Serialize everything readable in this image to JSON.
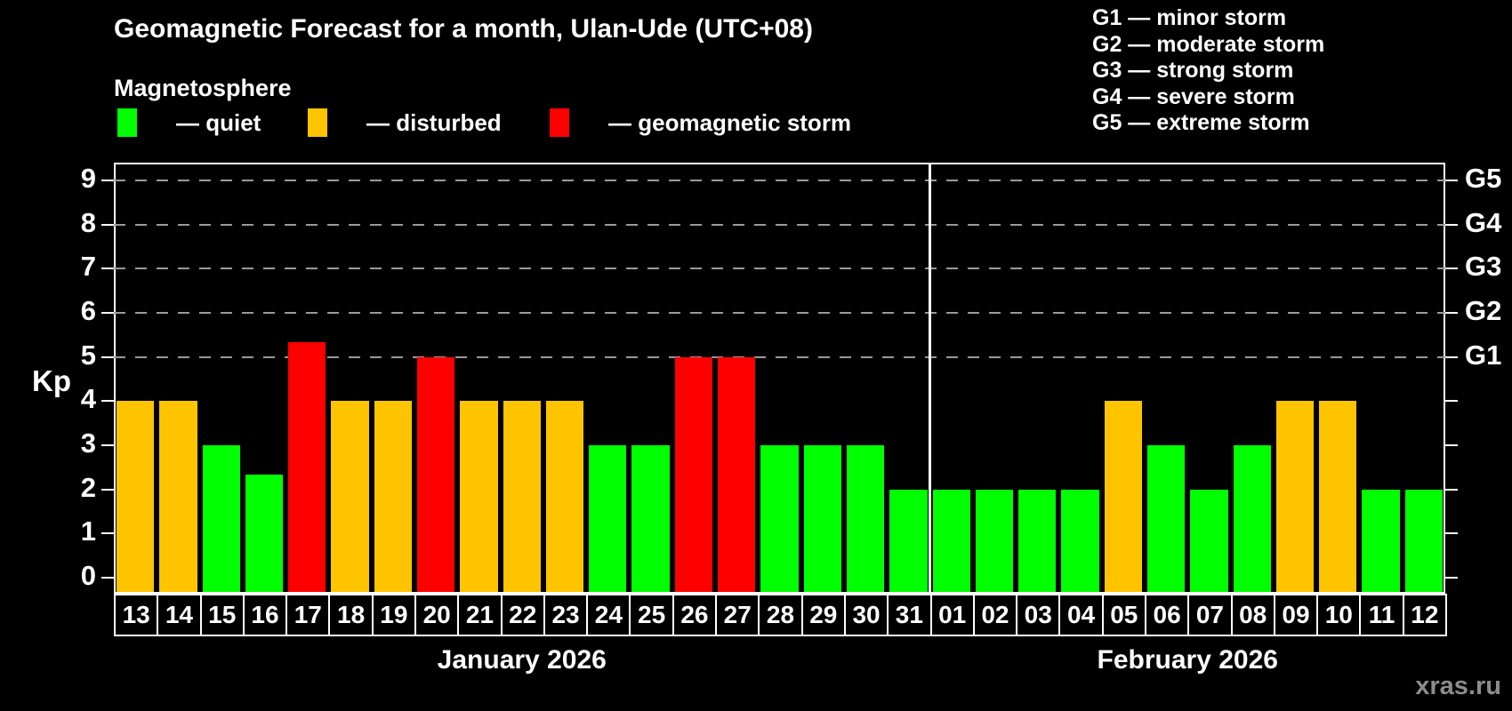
{
  "header": {
    "title": "Geomagnetic Forecast for a month, Ulan-Ude (UTC+08)",
    "subtitle": "Magnetosphere"
  },
  "legend": {
    "items": [
      {
        "label": "— quiet",
        "status": "quiet"
      },
      {
        "label": "— disturbed",
        "status": "disturbed"
      },
      {
        "label": "— geomagnetic storm",
        "status": "storm"
      }
    ]
  },
  "g_legend": {
    "items": [
      "G1 — minor storm",
      "G2 — moderate storm",
      "G3 — strong storm",
      "G4 — severe storm",
      "G5 — extreme storm"
    ]
  },
  "watermark": "xras.ru",
  "chart_data": {
    "type": "bar",
    "title": "Geomagnetic Forecast for a month, Ulan-Ude (UTC+08)",
    "series_name": "Magnetosphere",
    "xlabel": "",
    "ylabel": "Kp",
    "ylim": [
      -0.36,
      9.4
    ],
    "yticks": [
      0,
      1,
      2,
      3,
      4,
      5,
      6,
      7,
      8,
      9
    ],
    "grid_levels": [
      5,
      6,
      7,
      8,
      9
    ],
    "grid_on": true,
    "right_axis": [
      {
        "label": "G1",
        "value": 5
      },
      {
        "label": "G2",
        "value": 6
      },
      {
        "label": "G3",
        "value": 7
      },
      {
        "label": "G4",
        "value": 8
      },
      {
        "label": "G5",
        "value": 9
      }
    ],
    "status_colors": {
      "quiet": "#00ff00",
      "disturbed": "#ffc400",
      "storm": "#ff0000"
    },
    "months": [
      {
        "label": "January 2026",
        "key": "jan",
        "start_index": 0,
        "count": 19
      },
      {
        "label": "February 2026",
        "key": "feb",
        "start_index": 19,
        "count": 12
      }
    ],
    "points": [
      {
        "day": "13",
        "month": "jan",
        "value": 4,
        "status": "disturbed"
      },
      {
        "day": "14",
        "month": "jan",
        "value": 4,
        "status": "disturbed"
      },
      {
        "day": "15",
        "month": "jan",
        "value": 3,
        "status": "quiet"
      },
      {
        "day": "16",
        "month": "jan",
        "value": 2.33,
        "status": "quiet"
      },
      {
        "day": "17",
        "month": "jan",
        "value": 5.33,
        "status": "storm"
      },
      {
        "day": "18",
        "month": "jan",
        "value": 4,
        "status": "disturbed"
      },
      {
        "day": "19",
        "month": "jan",
        "value": 4,
        "status": "disturbed"
      },
      {
        "day": "20",
        "month": "jan",
        "value": 5,
        "status": "storm"
      },
      {
        "day": "21",
        "month": "jan",
        "value": 4,
        "status": "disturbed"
      },
      {
        "day": "22",
        "month": "jan",
        "value": 4,
        "status": "disturbed"
      },
      {
        "day": "23",
        "month": "jan",
        "value": 4,
        "status": "disturbed"
      },
      {
        "day": "24",
        "month": "jan",
        "value": 3,
        "status": "quiet"
      },
      {
        "day": "25",
        "month": "jan",
        "value": 3,
        "status": "quiet"
      },
      {
        "day": "26",
        "month": "jan",
        "value": 5,
        "status": "storm"
      },
      {
        "day": "27",
        "month": "jan",
        "value": 5,
        "status": "storm"
      },
      {
        "day": "28",
        "month": "jan",
        "value": 3,
        "status": "quiet"
      },
      {
        "day": "29",
        "month": "jan",
        "value": 3,
        "status": "quiet"
      },
      {
        "day": "30",
        "month": "jan",
        "value": 3,
        "status": "quiet"
      },
      {
        "day": "31",
        "month": "jan",
        "value": 2,
        "status": "quiet"
      },
      {
        "day": "01",
        "month": "feb",
        "value": 2,
        "status": "quiet"
      },
      {
        "day": "02",
        "month": "feb",
        "value": 2,
        "status": "quiet"
      },
      {
        "day": "03",
        "month": "feb",
        "value": 2,
        "status": "quiet"
      },
      {
        "day": "04",
        "month": "feb",
        "value": 2,
        "status": "quiet"
      },
      {
        "day": "05",
        "month": "feb",
        "value": 4,
        "status": "disturbed"
      },
      {
        "day": "06",
        "month": "feb",
        "value": 3,
        "status": "quiet"
      },
      {
        "day": "07",
        "month": "feb",
        "value": 2,
        "status": "quiet"
      },
      {
        "day": "08",
        "month": "feb",
        "value": 3,
        "status": "quiet"
      },
      {
        "day": "09",
        "month": "feb",
        "value": 4,
        "status": "disturbed"
      },
      {
        "day": "10",
        "month": "feb",
        "value": 4,
        "status": "disturbed"
      },
      {
        "day": "11",
        "month": "feb",
        "value": 2,
        "status": "quiet"
      },
      {
        "day": "12",
        "month": "feb",
        "value": 2,
        "status": "quiet"
      }
    ]
  }
}
